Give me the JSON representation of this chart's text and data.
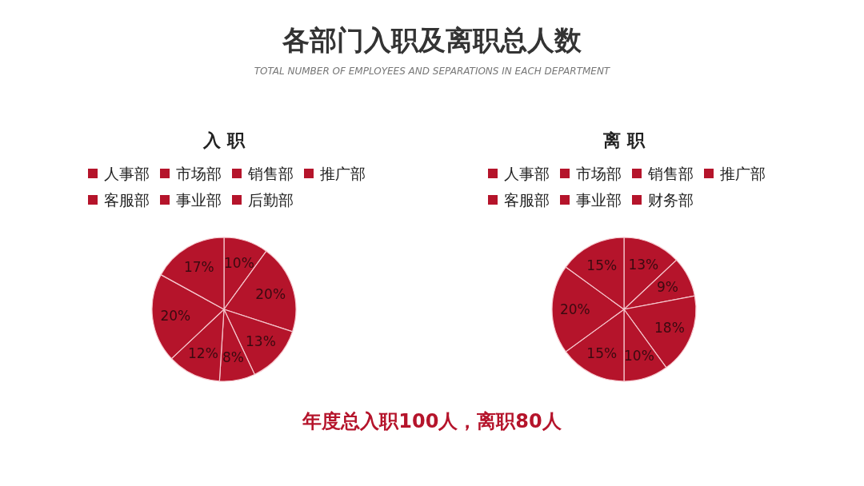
{
  "chart_data": [
    {
      "type": "other",
      "title": "各部门入职及离职总人数",
      "subtitle": "TOTAL NUMBER OF EMPLOYEES AND SEPARATIONS IN EACH DEPARTMENT",
      "annotations": [
        "年度总入职100人，离职80人"
      ]
    },
    {
      "type": "pie",
      "title": "入 职",
      "categories": [
        "人事部",
        "市场部",
        "销售部",
        "推广部",
        "客服部",
        "事业部",
        "后勤部"
      ],
      "values": [
        10,
        20,
        13,
        8,
        12,
        20,
        17
      ],
      "value_labels": [
        "10%",
        "20%",
        "13%",
        "8%",
        "12%",
        "20%",
        "17%"
      ],
      "colors": [
        "#b5142b",
        "#b5142b",
        "#b5142b",
        "#b5142b",
        "#b5142b",
        "#b5142b",
        "#b5142b"
      ],
      "legend": "top"
    },
    {
      "type": "pie",
      "title": "离 职",
      "categories": [
        "人事部",
        "市场部",
        "销售部",
        "推广部",
        "客服部",
        "事业部",
        "财务部"
      ],
      "values": [
        13,
        9,
        18,
        10,
        15,
        20,
        15
      ],
      "value_labels": [
        "13%",
        "9%",
        "18%",
        "10%",
        "15%",
        "20%",
        "15%"
      ],
      "colors": [
        "#b5142b",
        "#b5142b",
        "#b5142b",
        "#b5142b",
        "#b5142b",
        "#b5142b",
        "#b5142b"
      ],
      "legend": "top"
    }
  ]
}
